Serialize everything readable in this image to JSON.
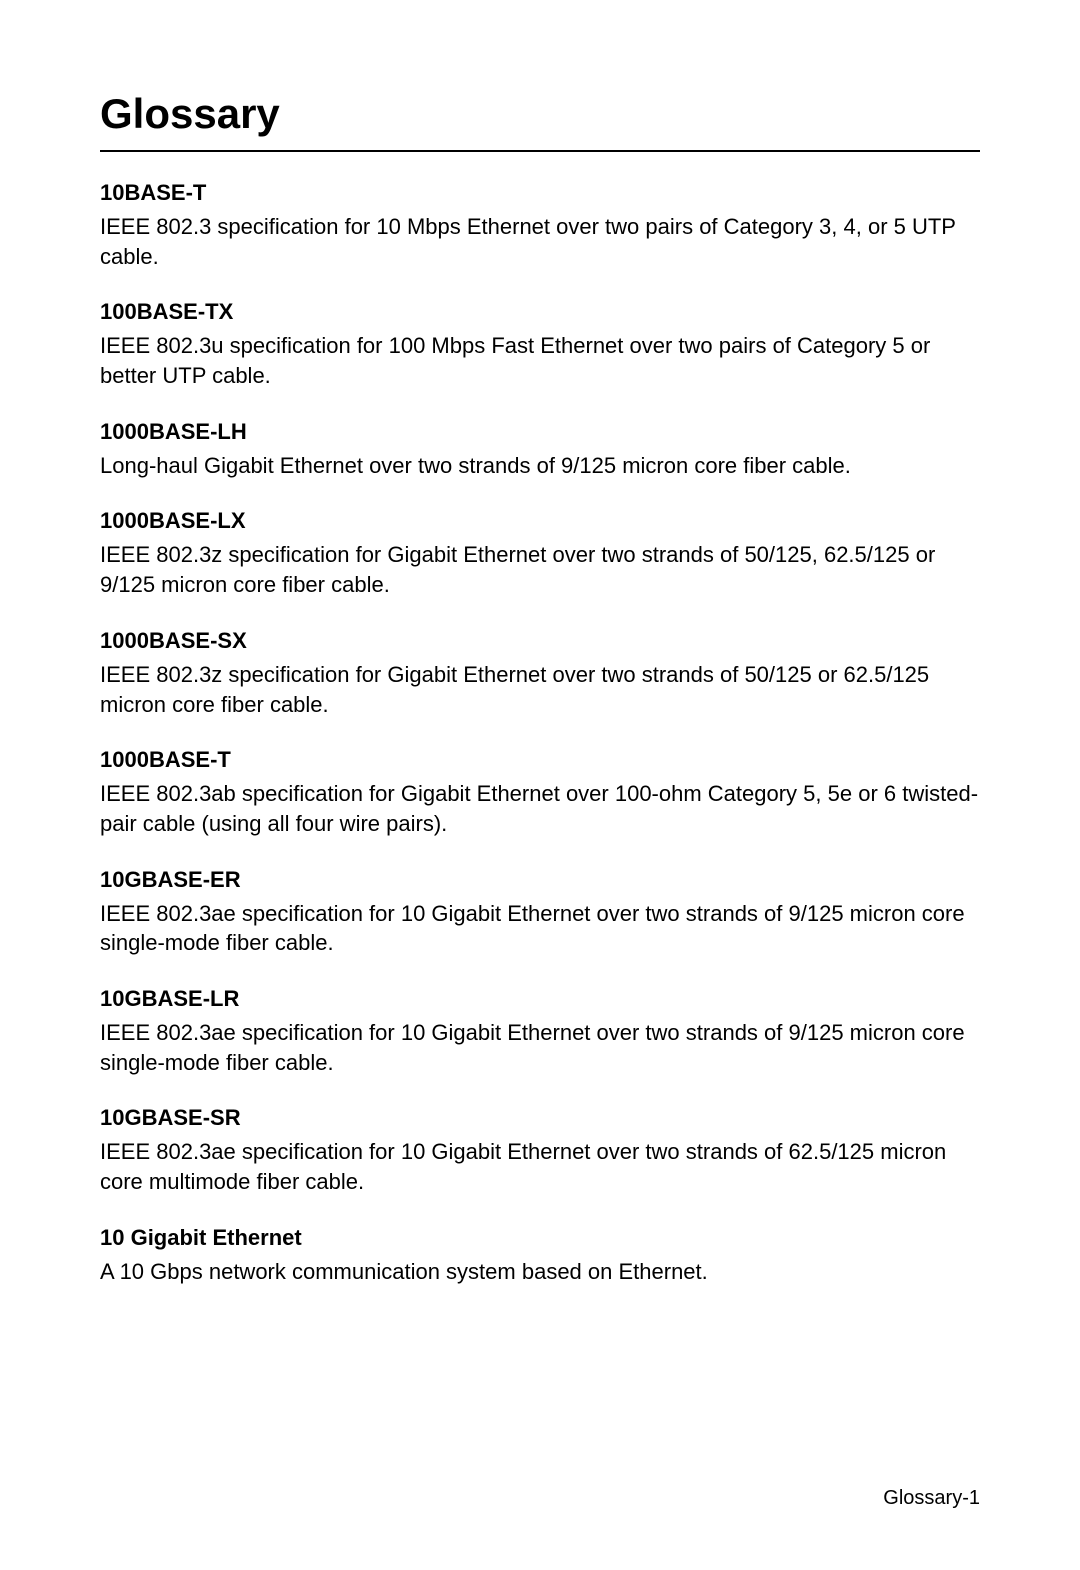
{
  "title": "Glossary",
  "entries": [
    {
      "term": "10BASE-T",
      "definition": "IEEE 802.3 specification for 10 Mbps Ethernet over two pairs of Category 3, 4, or 5 UTP cable."
    },
    {
      "term": "100BASE-TX",
      "definition": "IEEE 802.3u specification for 100 Mbps Fast Ethernet over two pairs of Category 5 or better UTP cable."
    },
    {
      "term": "1000BASE-LH",
      "definition": "Long-haul Gigabit Ethernet over two strands of 9/125 micron core fiber cable."
    },
    {
      "term": "1000BASE-LX",
      "definition": "IEEE 802.3z specification for Gigabit Ethernet over two strands of 50/125, 62.5/125 or 9/125 micron core fiber cable."
    },
    {
      "term": "1000BASE-SX",
      "definition": "IEEE 802.3z specification for Gigabit Ethernet over two strands of 50/125 or 62.5/125 micron core fiber cable."
    },
    {
      "term": "1000BASE-T",
      "definition": "IEEE 802.3ab specification for Gigabit Ethernet over 100-ohm Category 5, 5e or 6 twisted-pair cable (using all four wire pairs)."
    },
    {
      "term": "10GBASE-ER",
      "definition": "IEEE 802.3ae specification for 10 Gigabit Ethernet over two strands of 9/125 micron core single-mode fiber cable."
    },
    {
      "term": "10GBASE-LR",
      "definition": "IEEE 802.3ae specification for 10 Gigabit Ethernet over two strands of 9/125 micron core single-mode fiber cable."
    },
    {
      "term": "10GBASE-SR",
      "definition": "IEEE 802.3ae specification for 10 Gigabit Ethernet over two strands of 62.5/125 micron core multimode fiber cable."
    },
    {
      "term": "10 Gigabit Ethernet",
      "definition": "A 10 Gbps network communication system based on Ethernet."
    }
  ],
  "footer": "Glossary-1"
}
